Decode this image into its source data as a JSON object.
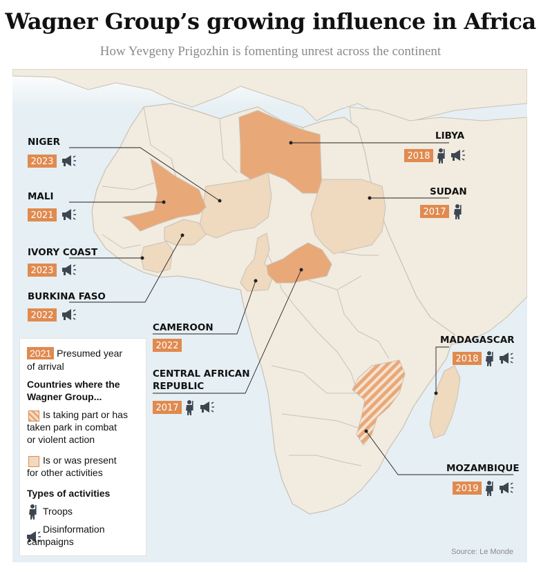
{
  "title": "Wagner Group’s growing influence in Africa",
  "subtitle": "How Yevgeny Prigozhin is fomenting unrest across the continent",
  "source": "Source: Le Monde",
  "colors": {
    "sea": "#e6eff3",
    "land": "#f1ebe0",
    "border": "#c9c1b4",
    "combat": "#e9a878",
    "other": "#efd9bf",
    "accent": "#e08a4f",
    "icon": "#3d4650"
  },
  "countries": [
    {
      "name": "NIGER",
      "year": "2023",
      "activities": [
        "disinformation"
      ]
    },
    {
      "name": "MALI",
      "year": "2021",
      "activities": [
        "disinformation"
      ]
    },
    {
      "name": "IVORY COAST",
      "year": "2023",
      "activities": [
        "disinformation"
      ]
    },
    {
      "name": "BURKINA FASO",
      "year": "2022",
      "activities": [
        "disinformation"
      ]
    },
    {
      "name": "CAMEROON",
      "year": "2022",
      "activities": []
    },
    {
      "name": "CENTRAL AFRICAN REPUBLIC",
      "year": "2017",
      "activities": [
        "troops",
        "disinformation"
      ]
    },
    {
      "name": "LIBYA",
      "year": "2018",
      "activities": [
        "troops",
        "disinformation"
      ]
    },
    {
      "name": "SUDAN",
      "year": "2017",
      "activities": [
        "troops"
      ]
    },
    {
      "name": "MADAGASCAR",
      "year": "2018",
      "activities": [
        "troops",
        "disinformation"
      ]
    },
    {
      "name": "MOZAMBIQUE",
      "year": "2019",
      "activities": [
        "troops",
        "disinformation"
      ]
    }
  ],
  "legend": {
    "year_example": "2021",
    "year_text_1": "Presumed year",
    "year_text_2": "of arrival",
    "countries_heading_1": "Countries where the",
    "countries_heading_2": "Wagner Group...",
    "combat_1": "Is taking part or has",
    "combat_2": "taken park in combat",
    "combat_3": "or violent action",
    "other_1": "Is or was present",
    "other_2": "for other activities",
    "types_heading": "Types of activities",
    "troops": "Troops",
    "disinfo_1": "Disinformation",
    "disinfo_2": "campaigns"
  }
}
